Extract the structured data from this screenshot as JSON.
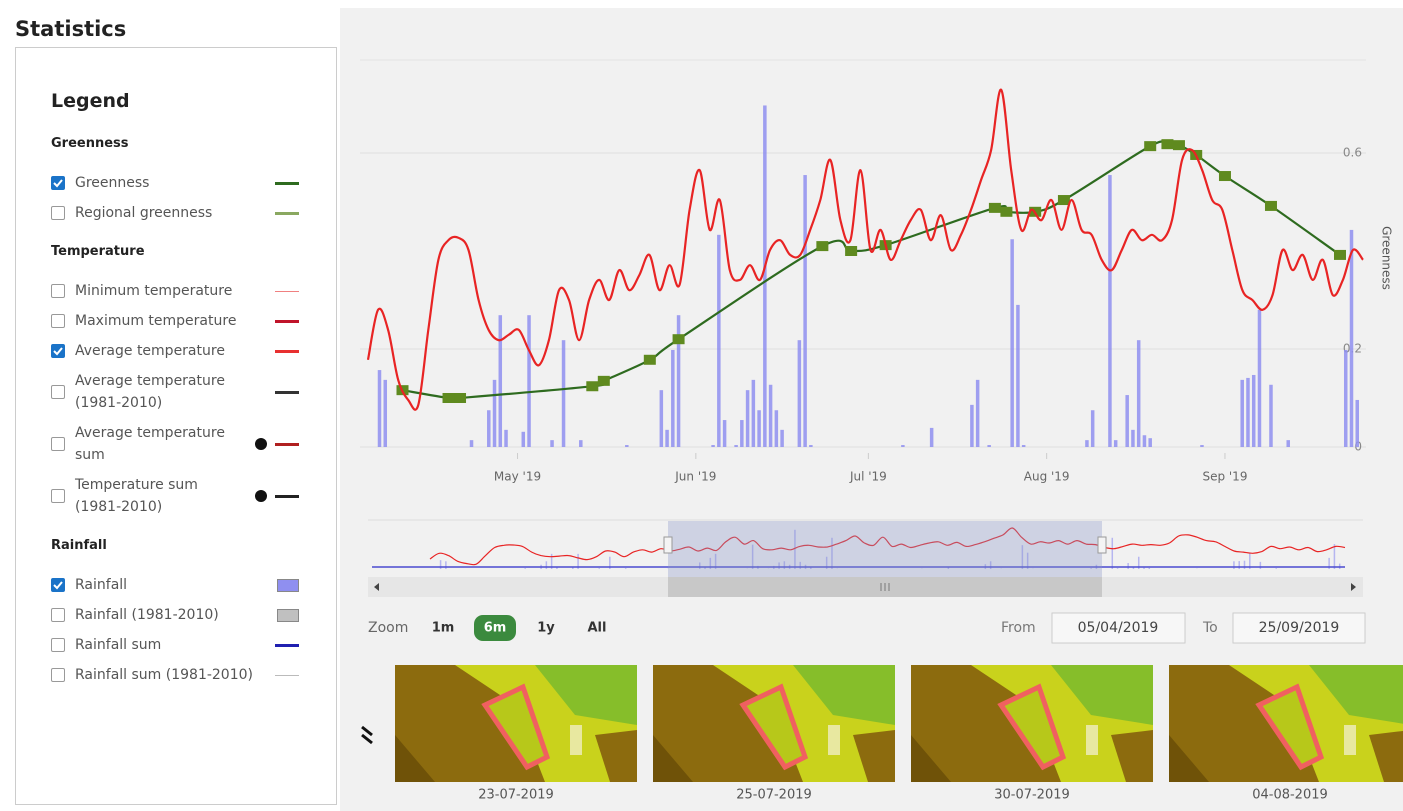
{
  "header": {
    "title": "Statistics"
  },
  "legend": {
    "title": "Legend",
    "groups": [
      {
        "title": "Greenness",
        "items": [
          {
            "label": "Greenness",
            "checked": true,
            "color": "#2e6b1f",
            "style": "line"
          },
          {
            "label": "Regional greenness",
            "checked": false,
            "color": "#8aa860",
            "style": "line"
          }
        ]
      },
      {
        "title": "Temperature",
        "items": [
          {
            "label": "Minimum temperature",
            "checked": false,
            "color": "#f08080",
            "style": "thin"
          },
          {
            "label": "Maximum temperature",
            "checked": false,
            "color": "#c0142a",
            "style": "line"
          },
          {
            "label": "Average temperature",
            "checked": true,
            "color": "#e83030",
            "style": "line"
          },
          {
            "label": "Average temperature (1981-2010)",
            "checked": false,
            "color": "#333333",
            "style": "line"
          },
          {
            "label": "Average temperature sum",
            "checked": false,
            "color": "#b02020",
            "style": "line",
            "info": true
          },
          {
            "label": "Temperature sum (1981-2010)",
            "checked": false,
            "color": "#222222",
            "style": "line",
            "info": true
          }
        ]
      },
      {
        "title": "Rainfall",
        "items": [
          {
            "label": "Rainfall",
            "checked": true,
            "color": "#8f8ff0",
            "style": "box"
          },
          {
            "label": "Rainfall (1981-2010)",
            "checked": false,
            "color": "#c0c0c0",
            "style": "box"
          },
          {
            "label": "Rainfall sum",
            "checked": false,
            "color": "#2020b0",
            "style": "line"
          },
          {
            "label": "Rainfall sum (1981-2010)",
            "checked": false,
            "color": "#bbbbbb",
            "style": "thin"
          }
        ]
      }
    ]
  },
  "chart_data": {
    "type": "line",
    "ylabel": "Greenness",
    "xlim": [
      "2019-04-05",
      "2019-09-25"
    ],
    "xticks": [
      {
        "value": "2019-05-01",
        "label": "May '19"
      },
      {
        "value": "2019-06-01",
        "label": "Jun '19"
      },
      {
        "value": "2019-07-01",
        "label": "Jul '19"
      },
      {
        "value": "2019-08-01",
        "label": "Aug '19"
      },
      {
        "value": "2019-09-01",
        "label": "Sep '19"
      }
    ],
    "ylim": [
      0,
      0.8
    ],
    "yticks": [
      0,
      0.2,
      0.6
    ],
    "series": [
      {
        "type": "line",
        "color": "#2e6b1f",
        "marker_color": "#5f8a1f",
        "x": [
          "2019-04-11",
          "2019-04-19",
          "2019-04-21",
          "2019-05-14",
          "2019-05-16",
          "2019-05-24",
          "2019-05-29",
          "2019-06-23",
          "2019-06-28",
          "2019-07-04",
          "2019-07-23",
          "2019-07-25",
          "2019-07-30",
          "2019-08-04",
          "2019-08-19",
          "2019-08-22",
          "2019-08-24",
          "2019-08-27",
          "2019-09-01",
          "2019-09-09",
          "2019-09-21"
        ],
        "values": [
          0.116,
          0.1,
          0.1,
          0.124,
          0.135,
          0.178,
          0.22,
          0.41,
          0.4,
          0.412,
          0.488,
          0.48,
          0.48,
          0.504,
          0.614,
          0.618,
          0.616,
          0.596,
          0.553,
          0.492,
          0.392
        ]
      },
      {
        "type": "line",
        "color": "#e82424",
        "values": [
          0.178,
          0.28,
          0.239,
          0.137,
          0.096,
          0.086,
          0.239,
          0.382,
          0.422,
          0.427,
          0.402,
          0.3,
          0.239,
          0.218,
          0.229,
          0.239,
          0.198,
          0.167,
          0.218,
          0.32,
          0.3,
          0.218,
          0.3,
          0.341,
          0.3,
          0.361,
          0.32,
          0.351,
          0.392,
          0.32,
          0.371,
          0.331,
          0.484,
          0.565,
          0.443,
          0.504,
          0.361,
          0.341,
          0.371,
          0.341,
          0.402,
          0.422,
          0.392,
          0.392,
          0.443,
          0.504,
          0.586,
          0.463,
          0.422,
          0.565,
          0.402,
          0.443,
          0.382,
          0.422,
          0.463,
          0.484,
          0.422,
          0.473,
          0.402,
          0.433,
          0.484,
          0.545,
          0.606,
          0.729,
          0.565,
          0.443,
          0.484,
          0.463,
          0.504,
          0.443,
          0.504,
          0.443,
          0.433,
          0.382,
          0.361,
          0.402,
          0.443,
          0.422,
          0.433,
          0.422,
          0.463,
          0.586,
          0.606,
          0.565,
          0.504,
          0.484,
          0.402,
          0.32,
          0.3,
          0.28,
          0.31,
          0.402,
          0.361,
          0.392,
          0.341,
          0.382,
          0.31,
          0.341,
          0.402,
          0.382
        ]
      },
      {
        "type": "bar",
        "color": "#8f8ff0",
        "x": [
          "2019-04-07",
          "2019-04-08",
          "2019-04-23",
          "2019-04-26",
          "2019-04-27",
          "2019-04-28",
          "2019-04-29",
          "2019-05-02",
          "2019-05-03",
          "2019-05-07",
          "2019-05-09",
          "2019-05-12",
          "2019-05-20",
          "2019-05-26",
          "2019-05-27",
          "2019-05-28",
          "2019-05-29",
          "2019-06-04",
          "2019-06-05",
          "2019-06-06",
          "2019-06-08",
          "2019-06-09",
          "2019-06-10",
          "2019-06-11",
          "2019-06-12",
          "2019-06-13",
          "2019-06-14",
          "2019-06-15",
          "2019-06-16",
          "2019-06-19",
          "2019-06-20",
          "2019-06-21",
          "2019-07-07",
          "2019-07-12",
          "2019-07-19",
          "2019-07-20",
          "2019-07-22",
          "2019-07-26",
          "2019-07-27",
          "2019-07-28",
          "2019-08-08",
          "2019-08-09",
          "2019-08-12",
          "2019-08-13",
          "2019-08-15",
          "2019-08-16",
          "2019-08-17",
          "2019-08-18",
          "2019-08-19",
          "2019-08-28",
          "2019-09-04",
          "2019-09-05",
          "2019-09-06",
          "2019-09-07",
          "2019-09-09",
          "2019-09-12",
          "2019-09-22",
          "2019-09-23",
          "2019-09-24"
        ],
        "values": [
          0.157,
          0.137,
          0.014,
          0.075,
          0.137,
          0.269,
          0.035,
          0.031,
          0.269,
          0.014,
          0.218,
          0.014,
          0.004,
          0.116,
          0.035,
          0.198,
          0.269,
          0.004,
          0.433,
          0.055,
          0.004,
          0.055,
          0.116,
          0.137,
          0.075,
          0.697,
          0.127,
          0.075,
          0.035,
          0.218,
          0.555,
          0.004,
          0.004,
          0.039,
          0.086,
          0.137,
          0.004,
          0.424,
          0.29,
          0.004,
          0.014,
          0.075,
          0.555,
          0.014,
          0.106,
          0.035,
          0.218,
          0.024,
          0.018,
          0.004,
          0.137,
          0.141,
          0.147,
          0.28,
          0.127,
          0.014,
          0.198,
          0.443,
          0.096
        ]
      }
    ]
  },
  "zoom": {
    "label": "Zoom",
    "options": [
      "1m",
      "6m",
      "1y",
      "All"
    ],
    "active": 1
  },
  "range": {
    "from_label": "From",
    "from": "05/04/2019",
    "to_label": "To",
    "to": "25/09/2019"
  },
  "thumbnails": [
    "23-07-2019",
    "25-07-2019",
    "30-07-2019",
    "04-08-2019"
  ]
}
